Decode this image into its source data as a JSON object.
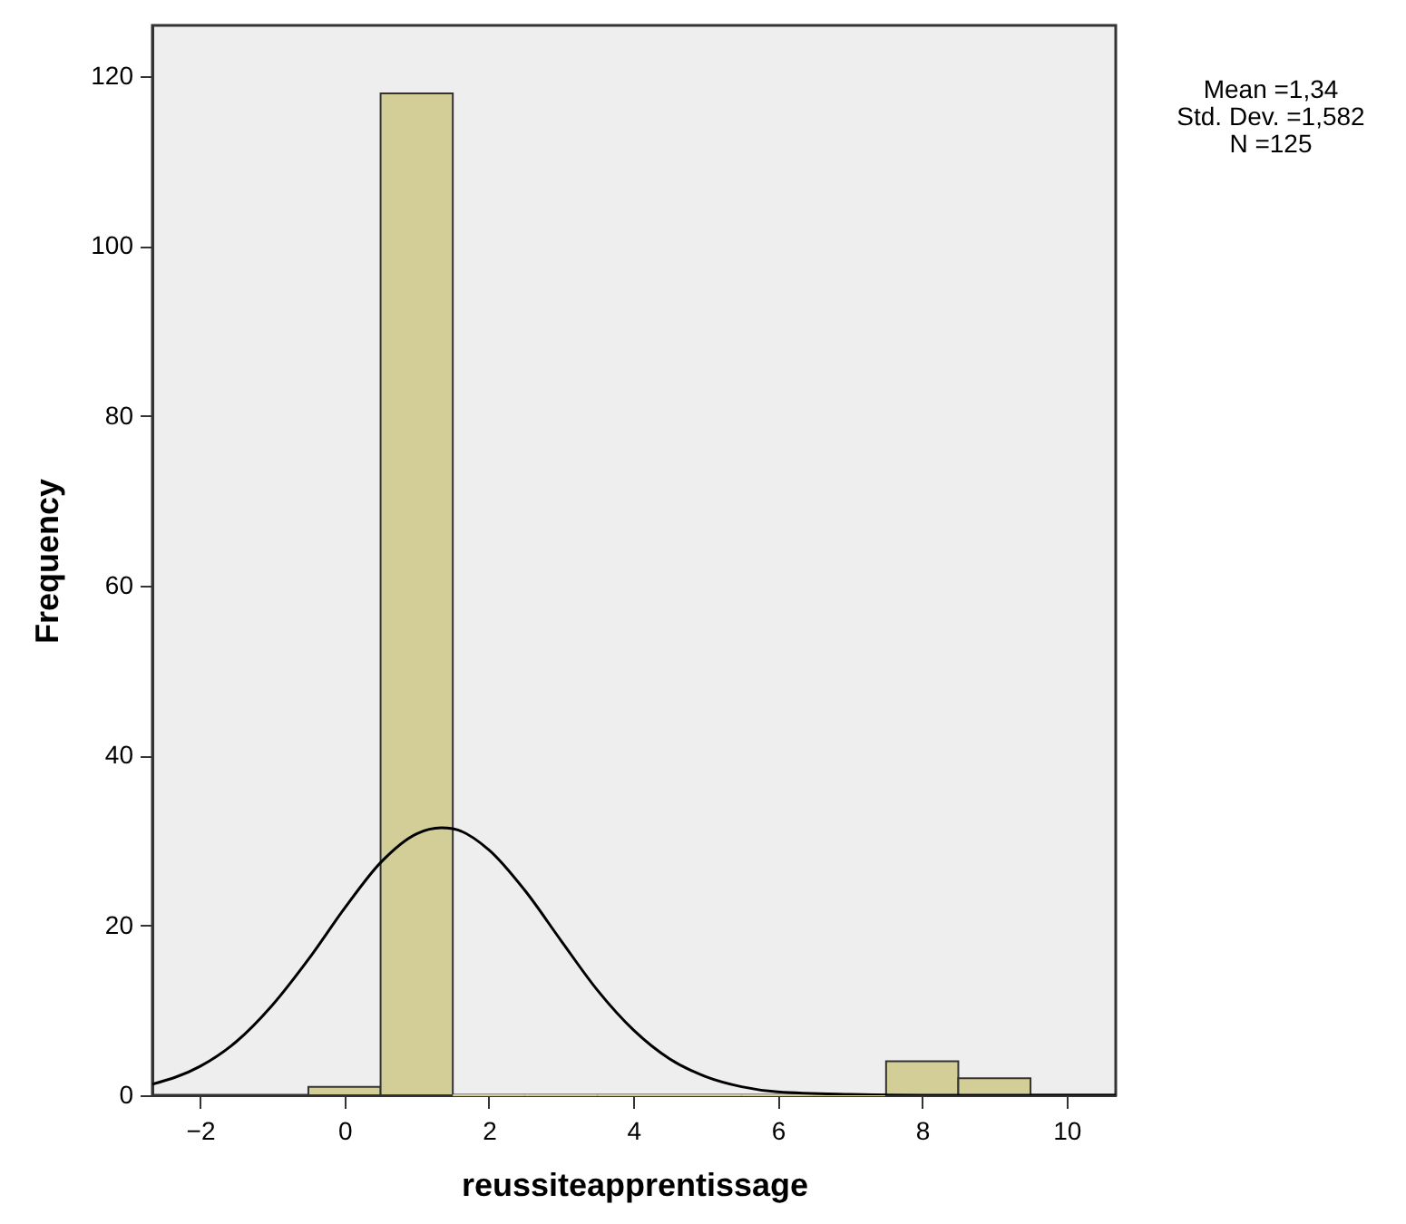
{
  "chart_data": {
    "type": "histogram",
    "xlabel": "reussiteapprentissage",
    "ylabel": "Frequency",
    "bins": [
      -0.5,
      0.5,
      1.5,
      2.5,
      3.5,
      4.5,
      5.5,
      6.5,
      7.5,
      8.5,
      9.5
    ],
    "values": [
      1,
      118,
      0,
      0,
      0,
      0,
      0,
      0,
      4,
      2
    ],
    "color": "#d3ce97",
    "series": [
      {
        "type": "line",
        "color": "#000000",
        "x": [
          -2.66,
          -2,
          -1.5,
          -1,
          -0.5,
          0,
          0.5,
          1,
          1.34,
          1.5,
          2,
          2.5,
          3,
          3.5,
          4,
          4.5,
          5,
          5.5,
          6,
          7,
          8,
          10.68
        ],
        "values": [
          1.3,
          3.4,
          6.3,
          10.6,
          16.0,
          22.0,
          27.4,
          30.8,
          31.5,
          31.4,
          28.9,
          24.1,
          18.2,
          12.4,
          7.7,
          4.3,
          2.2,
          1.0,
          0.4,
          0.1,
          0,
          0
        ]
      }
    ],
    "xlim": [
      -2.66,
      10.68
    ],
    "xticks": [
      -2,
      0,
      2,
      4,
      6,
      8,
      10
    ],
    "ylim": [
      0,
      126
    ],
    "yticks": [
      0,
      20,
      40,
      60,
      80,
      100,
      120
    ],
    "grid": false,
    "annotations": [
      "Mean =1,34",
      "Std. Dev. =1,582",
      "N =125"
    ]
  }
}
